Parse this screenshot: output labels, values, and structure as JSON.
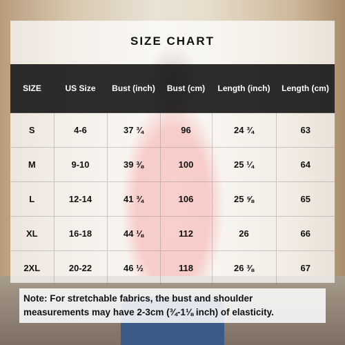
{
  "title": "SIZE CHART",
  "table": {
    "headers": [
      "SIZE",
      "US Size",
      "Bust (inch)",
      "Bust (cm)",
      "Length (inch)",
      "Length (cm)"
    ],
    "rows": [
      [
        "S",
        "4-6",
        "37 ¾",
        "96",
        "24 ¾",
        "63"
      ],
      [
        "M",
        "9-10",
        "39 ⅜",
        "100",
        "25 ¼",
        "64"
      ],
      [
        "L",
        "12-14",
        "41 ¾",
        "106",
        "25 ⅝",
        "65"
      ],
      [
        "XL",
        "16-18",
        "44 ⅛",
        "112",
        "26",
        "66"
      ],
      [
        "2XL",
        "20-22",
        "46 ½",
        "118",
        "26 ⅜",
        "67"
      ]
    ]
  },
  "note": [
    "Note: For stretchable fabrics, the bust and shoulder",
    "measurements may have 2-3cm (¾-1⅛ inch) of elasticity."
  ]
}
